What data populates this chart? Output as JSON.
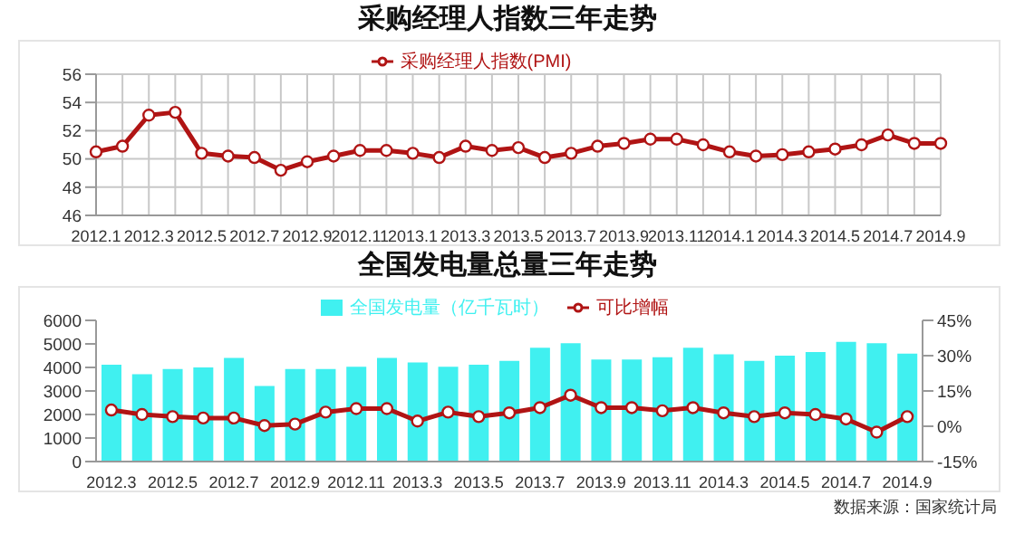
{
  "chart_data": [
    {
      "type": "line",
      "title": "采购经理人指数三年走势",
      "categories": [
        "2012.1",
        null,
        "2012.3",
        null,
        "2012.5",
        null,
        "2012.7",
        null,
        "2012.9",
        null,
        "2012.11",
        null,
        "2013.1",
        null,
        "2013.3",
        null,
        "2013.5",
        null,
        "2013.7",
        null,
        "2013.9",
        null,
        "2013.11",
        null,
        "2014.1",
        null,
        "2014.3",
        null,
        "2014.5",
        null,
        "2014.7",
        null,
        "2014.9"
      ],
      "series": [
        {
          "name": "采购经理人指数(PMI)",
          "color": "#b01414",
          "values": [
            50.5,
            50.9,
            53.1,
            53.3,
            50.4,
            50.2,
            50.1,
            49.2,
            49.8,
            50.2,
            50.6,
            50.6,
            50.4,
            50.1,
            50.9,
            50.6,
            50.8,
            50.1,
            50.4,
            50.9,
            51.1,
            51.4,
            51.4,
            51.0,
            50.5,
            50.2,
            50.3,
            50.5,
            50.7,
            51.0,
            51.7,
            51.1,
            51.1
          ]
        }
      ],
      "ylim": [
        46,
        56
      ],
      "yticks": [
        46,
        48,
        50,
        52,
        54,
        56
      ],
      "grid": true,
      "legend": "top",
      "marker": "circle"
    },
    {
      "type": "bar",
      "title": "全国发电量总量三年走势",
      "categories": [
        "2012.3",
        null,
        "2012.5",
        null,
        "2012.7",
        null,
        "2012.9",
        null,
        "2012.11",
        null,
        "2013.3",
        null,
        "2013.5",
        null,
        "2013.7",
        null,
        "2013.9",
        null,
        "2013.11",
        null,
        "2014.3",
        null,
        "2014.5",
        null,
        "2014.7",
        null,
        "2014.9"
      ],
      "series": [
        {
          "name": "全国发电量（亿千瓦时）",
          "color": "#40f0f0",
          "values": [
            4120,
            3710,
            3930,
            4000,
            4400,
            3210,
            3930,
            3930,
            4030,
            4400,
            4210,
            4030,
            4120,
            4280,
            4840,
            5030,
            4340,
            4340,
            4430,
            4840,
            4560,
            4280,
            4500,
            4650,
            5090,
            5030,
            4590
          ]
        },
        {
          "name": "可比增幅",
          "type": "line",
          "axis": "y2",
          "color": "#b01414",
          "values": [
            6.9,
            5.0,
            4.1,
            3.5,
            3.5,
            0.3,
            0.9,
            6.0,
            7.5,
            7.5,
            2.2,
            6.0,
            4.1,
            5.7,
            7.9,
            13.2,
            7.9,
            7.9,
            6.6,
            7.9,
            5.7,
            4.1,
            5.7,
            5.0,
            3.1,
            -2.5,
            4.1
          ]
        }
      ],
      "ylim": [
        0,
        6000
      ],
      "yticks": [
        0,
        1000,
        2000,
        3000,
        4000,
        5000,
        6000
      ],
      "y2lim": [
        -15,
        45
      ],
      "y2ticks": [
        {
          "value": -15,
          "label": "-15%"
        },
        {
          "value": 0,
          "label": "0%"
        },
        {
          "value": 15,
          "label": "15%"
        },
        {
          "value": 30,
          "label": "30%"
        },
        {
          "value": 45,
          "label": "45%"
        }
      ],
      "grid": false,
      "legend": "top",
      "marker": "circle",
      "annotations": [
        "数据来源：国家统计局"
      ]
    }
  ]
}
